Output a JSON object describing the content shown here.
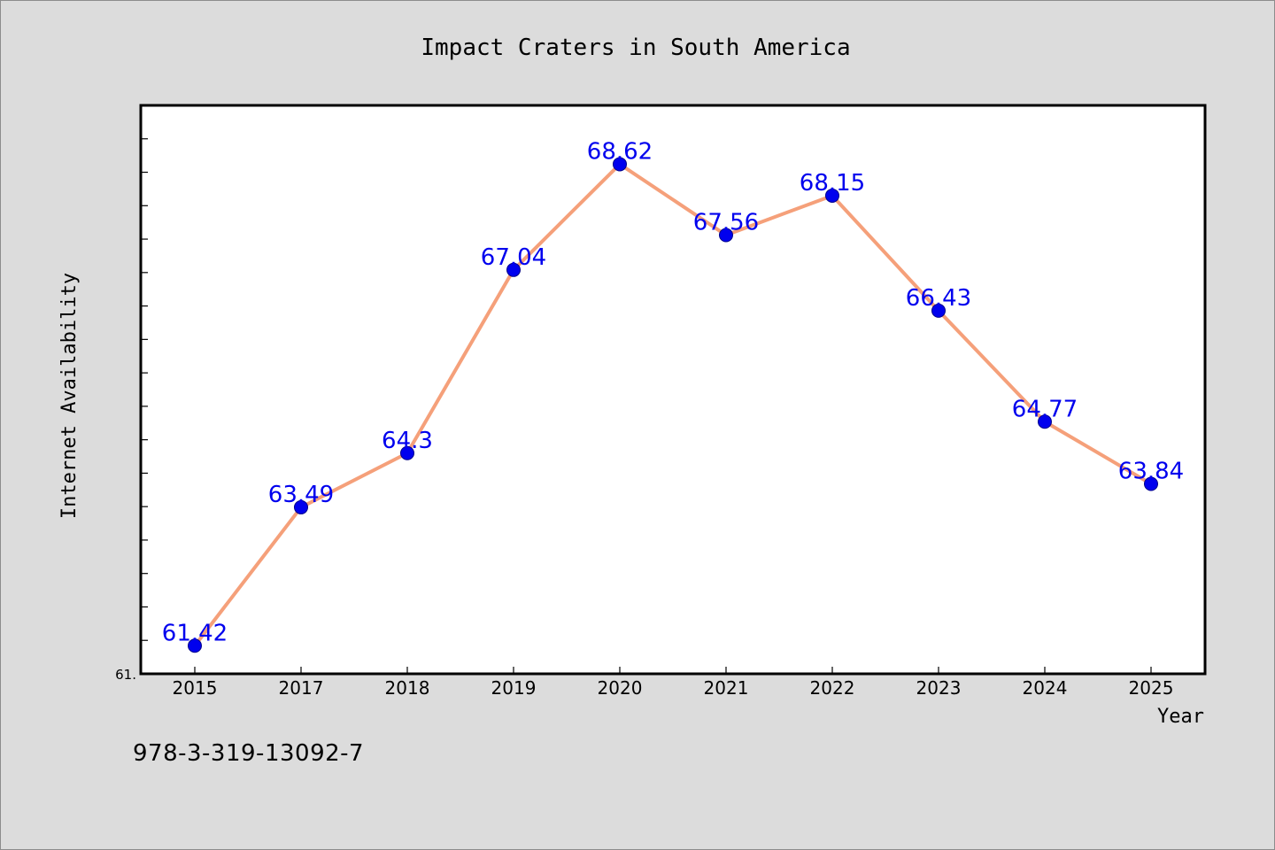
{
  "chart_data": {
    "type": "line",
    "title": "Impact Craters in South America",
    "xlabel": "Year",
    "ylabel": "Internet Availability",
    "categories": [
      "2015",
      "2017",
      "2018",
      "2019",
      "2020",
      "2021",
      "2022",
      "2023",
      "2024",
      "2025"
    ],
    "values": [
      61.42,
      63.49,
      64.3,
      67.04,
      68.62,
      67.56,
      68.15,
      66.43,
      64.77,
      63.84
    ],
    "data_labels": [
      "61.42",
      "63.49",
      "64.3",
      "67.04",
      "68.62",
      "67.56",
      "68.15",
      "66.43",
      "64.77",
      "63.84"
    ],
    "ylim": [
      61.0,
      69.5
    ],
    "y_tick_labels": [
      "61."
    ],
    "grid": false,
    "line_color": "#f5a07a",
    "marker_color": "#0000ee",
    "label_color": "#0000ee"
  },
  "footer": {
    "text": "978-3-319-13092-7"
  }
}
